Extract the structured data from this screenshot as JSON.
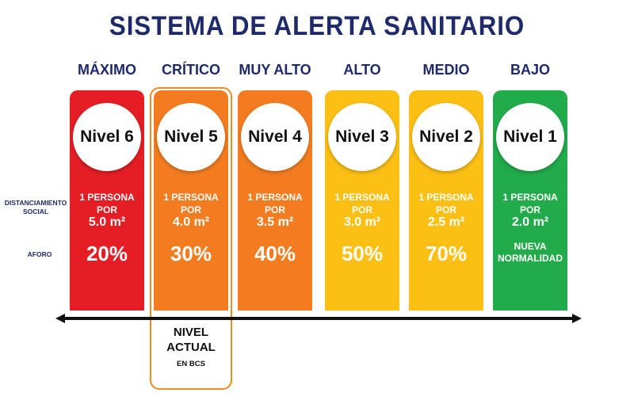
{
  "title": "SISTEMA DE ALERTA SANITARIO",
  "row_labels": {
    "distanciamiento": "DISTANCIAMIENTO SOCIAL",
    "aforo": "AFORO"
  },
  "levels": [
    {
      "name": "MÁXIMO",
      "nivel": "Nivel 6",
      "dist_line1": "1 PERSONA POR",
      "dist_line2": "5.0 m²",
      "aforo": "20%",
      "color": "#e41e24"
    },
    {
      "name": "CRÍTICO",
      "nivel": "Nivel 5",
      "dist_line1": "1 PERSONA POR",
      "dist_line2": "4.0 m²",
      "aforo": "30%",
      "color": "#f47c20"
    },
    {
      "name": "MUY ALTO",
      "nivel": "Nivel 4",
      "dist_line1": "1 PERSONA POR",
      "dist_line2": "3.5 m²",
      "aforo": "40%",
      "color": "#f47c20"
    },
    {
      "name": "ALTO",
      "nivel": "Nivel 3",
      "dist_line1": "1 PERSONA POR",
      "dist_line2": "3.0 m²",
      "aforo": "50%",
      "color": "#fcbf14"
    },
    {
      "name": "MEDIO",
      "nivel": "Nivel 2",
      "dist_line1": "1 PERSONA POR",
      "dist_line2": "2.5 m²",
      "aforo": "70%",
      "color": "#fcbf14"
    },
    {
      "name": "BAJO",
      "nivel": "Nivel 1",
      "dist_line1": "1 PERSONA POR",
      "dist_line2": "2.0 m²",
      "aforo": "NUEVA NORMALIDAD",
      "color": "#22ab4a"
    }
  ],
  "current": {
    "line1": "NIVEL",
    "line2": "ACTUAL",
    "line3": "EN BCS",
    "accent": "#f28a22"
  }
}
